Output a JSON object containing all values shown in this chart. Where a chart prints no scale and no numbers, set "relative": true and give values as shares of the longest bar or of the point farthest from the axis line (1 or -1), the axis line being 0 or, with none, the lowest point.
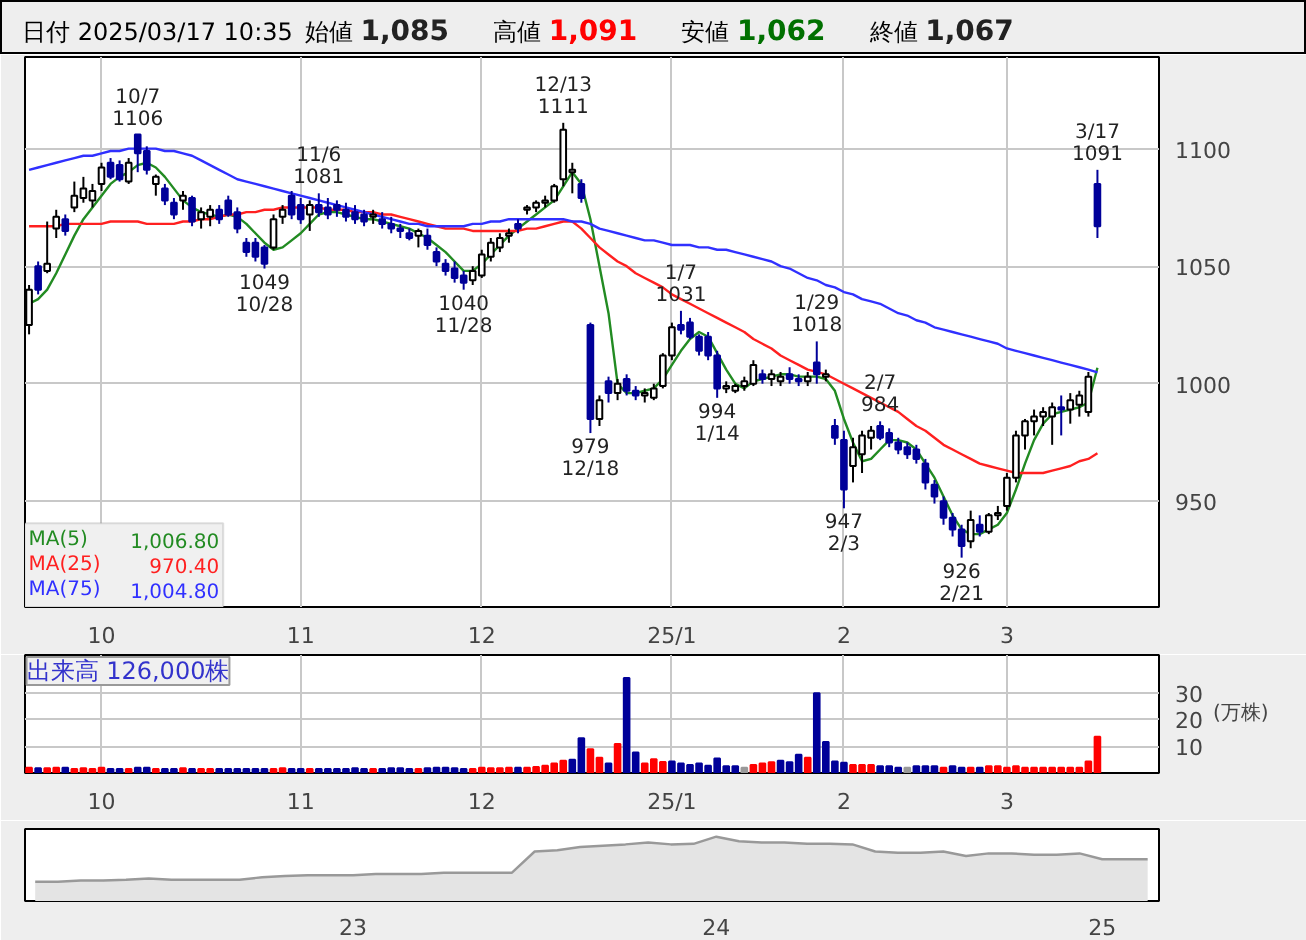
{
  "chart_data": [
    {
      "type": "candlestick",
      "grid": true,
      "annotations": [
        "日付 2025/03/17 10:35",
        "始値 1,085",
        "高値 1,091",
        "安値 1,062",
        "終値 1,067",
        {
          "text": "10/7\n1106",
          "y": 1106
        },
        {
          "text": "1049\n10/28",
          "y": 1049
        },
        {
          "text": "11/6\n1081",
          "y": 1081
        },
        {
          "text": "1040\n11/28",
          "y": 1040
        },
        {
          "text": "12/13\n1111",
          "y": 1111
        },
        {
          "text": "979\n12/18",
          "y": 979
        },
        {
          "text": "1/7\n1031",
          "y": 1031
        },
        {
          "text": "994\n1/14",
          "y": 994
        },
        {
          "text": "1/29\n1018",
          "y": 1018
        },
        {
          "text": "947\n2/3",
          "y": 947
        },
        {
          "text": "2/7\n984",
          "y": 984
        },
        {
          "text": "926\n2/21",
          "y": 926
        },
        {
          "text": "3/17\n1091",
          "y": 1091
        }
      ],
      "categories": [
        null,
        null,
        null,
        null,
        null,
        null,
        null,
        null,
        "10",
        null,
        null,
        null,
        null,
        null,
        null,
        null,
        null,
        null,
        null,
        null,
        null,
        null,
        null,
        null,
        null,
        null,
        null,
        null,
        null,
        null,
        "11",
        null,
        null,
        null,
        null,
        null,
        null,
        null,
        null,
        null,
        null,
        null,
        null,
        null,
        null,
        null,
        null,
        null,
        null,
        null,
        "12",
        null,
        null,
        null,
        null,
        null,
        null,
        null,
        null,
        null,
        null,
        null,
        null,
        null,
        null,
        null,
        null,
        null,
        null,
        null,
        null,
        "25/1",
        null,
        null,
        null,
        null,
        null,
        null,
        null,
        null,
        null,
        null,
        null,
        null,
        null,
        null,
        null,
        null,
        null,
        null,
        "2",
        null,
        null,
        null,
        null,
        null,
        null,
        null,
        null,
        null,
        null,
        null,
        null,
        null,
        null,
        null,
        null,
        null,
        "3",
        null,
        null,
        null,
        null,
        null,
        null,
        null,
        null,
        null,
        null
      ],
      "ylim": [
        905,
        1139
      ],
      "yticks": [
        950,
        1000,
        1050,
        1100
      ],
      "ohlc": [
        [
          1025,
          1042,
          1021,
          1040
        ],
        [
          1050,
          1052,
          1038,
          1040
        ],
        [
          1048,
          1069,
          1047,
          1051
        ],
        [
          1066,
          1074,
          1062,
          1071
        ],
        [
          1070,
          1072,
          1063,
          1065
        ],
        [
          1075,
          1086,
          1073,
          1080
        ],
        [
          1079,
          1088,
          1077,
          1083
        ],
        [
          1078,
          1085,
          1075,
          1082
        ],
        [
          1085,
          1094,
          1082,
          1092
        ],
        [
          1094,
          1096,
          1087,
          1088
        ],
        [
          1093,
          1095,
          1086,
          1087
        ],
        [
          1086,
          1096,
          1085,
          1094
        ],
        [
          1106,
          1106,
          1090,
          1098
        ],
        [
          1099,
          1101,
          1089,
          1091
        ],
        [
          1085,
          1089,
          1080,
          1088
        ],
        [
          1083,
          1085,
          1076,
          1078
        ],
        [
          1077,
          1079,
          1070,
          1072
        ],
        [
          1078,
          1082,
          1074,
          1080
        ],
        [
          1079,
          1080,
          1067,
          1069
        ],
        [
          1070,
          1075,
          1066,
          1073
        ],
        [
          1071,
          1076,
          1067,
          1074
        ],
        [
          1074,
          1076,
          1068,
          1070
        ],
        [
          1078,
          1080,
          1071,
          1072
        ],
        [
          1073,
          1075,
          1064,
          1066
        ],
        [
          1060,
          1062,
          1054,
          1056
        ],
        [
          1060,
          1062,
          1052,
          1054
        ],
        [
          1058,
          1059,
          1049,
          1051
        ],
        [
          1058,
          1072,
          1057,
          1070
        ],
        [
          1071,
          1076,
          1068,
          1074
        ],
        [
          1080,
          1082,
          1070,
          1072
        ],
        [
          1076,
          1079,
          1068,
          1070
        ],
        [
          1072,
          1078,
          1065,
          1076
        ],
        [
          1076,
          1081,
          1071,
          1073
        ],
        [
          1075,
          1079,
          1070,
          1072
        ],
        [
          1076,
          1078,
          1071,
          1074
        ],
        [
          1074,
          1077,
          1069,
          1071
        ],
        [
          1073,
          1076,
          1068,
          1070
        ],
        [
          1072,
          1074,
          1067,
          1069
        ],
        [
          1071,
          1074,
          1068,
          1072
        ],
        [
          1070,
          1073,
          1066,
          1068
        ],
        [
          1068,
          1071,
          1064,
          1066
        ],
        [
          1066,
          1068,
          1062,
          1065
        ],
        [
          1064,
          1066,
          1061,
          1062
        ],
        [
          1063,
          1066,
          1058,
          1065
        ],
        [
          1063,
          1066,
          1057,
          1059
        ],
        [
          1056,
          1058,
          1050,
          1052
        ],
        [
          1051,
          1053,
          1046,
          1048
        ],
        [
          1049,
          1052,
          1043,
          1045
        ],
        [
          1046,
          1048,
          1040,
          1043
        ],
        [
          1044,
          1050,
          1042,
          1048
        ],
        [
          1046,
          1057,
          1045,
          1055
        ],
        [
          1054,
          1062,
          1052,
          1060
        ],
        [
          1058,
          1064,
          1056,
          1062
        ],
        [
          1063,
          1066,
          1060,
          1064
        ],
        [
          1068,
          1070,
          1064,
          1066
        ],
        [
          1074,
          1076,
          1072,
          1075
        ],
        [
          1075,
          1078,
          1073,
          1077
        ],
        [
          1077,
          1080,
          1075,
          1078
        ],
        [
          1078,
          1085,
          1077,
          1084
        ],
        [
          1087,
          1111,
          1084,
          1108
        ],
        [
          1090,
          1094,
          1081,
          1091
        ],
        [
          1085,
          1087,
          1077,
          1079
        ],
        [
          1025,
          1026,
          979,
          985
        ],
        [
          985,
          995,
          982,
          993
        ],
        [
          1001,
          1003,
          992,
          996
        ],
        [
          996,
          1002,
          993,
          1000
        ],
        [
          1002,
          1004,
          995,
          997
        ],
        [
          997,
          999,
          993,
          995
        ],
        [
          995,
          998,
          992,
          996
        ],
        [
          994,
          1000,
          993,
          998
        ],
        [
          999,
          1013,
          998,
          1012
        ],
        [
          1012,
          1026,
          1010,
          1024
        ],
        [
          1025,
          1031,
          1021,
          1023
        ],
        [
          1026,
          1028,
          1019,
          1020
        ],
        [
          1020,
          1021,
          1012,
          1014
        ],
        [
          1020,
          1022,
          1010,
          1012
        ],
        [
          1012,
          1014,
          994,
          998
        ],
        [
          998,
          1001,
          996,
          999
        ],
        [
          997,
          1000,
          996,
          999
        ],
        [
          999,
          1003,
          997,
          1001
        ],
        [
          1000,
          1010,
          999,
          1008
        ],
        [
          1004,
          1006,
          1000,
          1002
        ],
        [
          1002,
          1006,
          999,
          1004
        ],
        [
          1001,
          1005,
          999,
          1003
        ],
        [
          1004,
          1007,
          1000,
          1002
        ],
        [
          1002,
          1004,
          999,
          1001
        ],
        [
          1001,
          1005,
          999,
          1003
        ],
        [
          1009,
          1018,
          1000,
          1004
        ],
        [
          1003,
          1006,
          1001,
          1004
        ],
        [
          982,
          985,
          974,
          977
        ],
        [
          976,
          980,
          947,
          955
        ],
        [
          965,
          977,
          958,
          973
        ],
        [
          970,
          980,
          962,
          978
        ],
        [
          977,
          982,
          972,
          980
        ],
        [
          982,
          984,
          976,
          977
        ],
        [
          979,
          981,
          973,
          975
        ],
        [
          975,
          977,
          970,
          972
        ],
        [
          973,
          975,
          968,
          970
        ],
        [
          972,
          974,
          966,
          968
        ],
        [
          966,
          968,
          955,
          958
        ],
        [
          957,
          959,
          949,
          952
        ],
        [
          950,
          952,
          940,
          943
        ],
        [
          943,
          945,
          935,
          938
        ],
        [
          938,
          940,
          926,
          931
        ],
        [
          933,
          946,
          930,
          942
        ],
        [
          940,
          944,
          935,
          937
        ],
        [
          937,
          945,
          936,
          944
        ],
        [
          944,
          948,
          942,
          945
        ],
        [
          948,
          962,
          946,
          960
        ],
        [
          960,
          980,
          958,
          978
        ],
        [
          978,
          985,
          972,
          984
        ],
        [
          984,
          989,
          978,
          986
        ],
        [
          986,
          990,
          982,
          988
        ],
        [
          986,
          992,
          974,
          990
        ],
        [
          990,
          995,
          978,
          989
        ],
        [
          989,
          996,
          983,
          993
        ],
        [
          991,
          997,
          986,
          995
        ],
        [
          988,
          1005,
          986,
          1003
        ],
        [
          1085,
          1091,
          1062,
          1067
        ]
      ],
      "series": [
        {
          "type": "line",
          "name": "MA(5) 1,006.80",
          "color": "#228b22",
          "values": [
            1034,
            1036,
            1040,
            1047,
            1055,
            1063,
            1070,
            1075,
            1080,
            1085,
            1088,
            1090,
            1093,
            1094,
            1092,
            1088,
            1083,
            1078,
            1075,
            1073,
            1072,
            1071,
            1072,
            1071,
            1068,
            1064,
            1060,
            1057,
            1058,
            1061,
            1064,
            1068,
            1072,
            1073,
            1073,
            1072,
            1071,
            1070,
            1070,
            1069,
            1068,
            1067,
            1066,
            1064,
            1062,
            1059,
            1056,
            1052,
            1048,
            1048,
            1051,
            1055,
            1059,
            1063,
            1066,
            1069,
            1072,
            1075,
            1078,
            1084,
            1090,
            1085,
            1070,
            1050,
            1030,
            1000,
            996,
            996,
            997,
            998,
            1002,
            1008,
            1014,
            1019,
            1022,
            1020,
            1013,
            1006,
            1000,
            998,
            1001,
            1002,
            1003,
            1004,
            1004,
            1003,
            1003,
            1003,
            1002,
            997,
            985,
            975,
            967,
            968,
            972,
            976,
            976,
            975,
            972,
            966,
            960,
            952,
            944,
            938,
            936,
            936,
            938,
            940,
            945,
            955,
            966,
            976,
            983,
            987,
            988,
            989,
            990,
            992,
            1006.8
          ]
        },
        {
          "type": "line",
          "name": "MA(25) 970.40",
          "color": "#ff2020",
          "values": [
            1067,
            1067,
            1067,
            1067,
            1068,
            1068,
            1068,
            1068,
            1068,
            1069,
            1069,
            1069,
            1069,
            1068,
            1068,
            1068,
            1068,
            1069,
            1069,
            1070,
            1070,
            1071,
            1072,
            1072,
            1073,
            1073,
            1074,
            1074,
            1075,
            1075,
            1075,
            1075,
            1075,
            1074,
            1074,
            1074,
            1073,
            1073,
            1073,
            1072,
            1072,
            1071,
            1070,
            1069,
            1068,
            1067,
            1066,
            1066,
            1066,
            1065,
            1065,
            1065,
            1065,
            1065,
            1065,
            1066,
            1066,
            1067,
            1068,
            1069,
            1069,
            1066,
            1062,
            1058,
            1055,
            1052,
            1050,
            1047,
            1045,
            1043,
            1041,
            1038,
            1036,
            1034,
            1032,
            1030,
            1028,
            1026,
            1024,
            1022,
            1019,
            1017,
            1015,
            1012,
            1010,
            1008,
            1006,
            1005,
            1004,
            1002,
            1000,
            998,
            996,
            994,
            992,
            990,
            988,
            985,
            982,
            980,
            977,
            974,
            972,
            970,
            968,
            966,
            965,
            964,
            963,
            962,
            962,
            962,
            962,
            963,
            964,
            965,
            967,
            968,
            970.4
          ]
        },
        {
          "type": "line",
          "name": "MA(75) 1,004.80",
          "color": "#3030ff",
          "values": [
            1091,
            1092,
            1093,
            1094,
            1095,
            1096,
            1097,
            1097,
            1098,
            1099,
            1099,
            1100,
            1100,
            1100,
            1100,
            1099,
            1099,
            1098,
            1097,
            1095,
            1093,
            1091,
            1089,
            1087,
            1086,
            1085,
            1084,
            1083,
            1082,
            1081,
            1080,
            1079,
            1078,
            1077,
            1076,
            1075,
            1074,
            1073,
            1072,
            1071,
            1070,
            1069,
            1068,
            1068,
            1067,
            1067,
            1067,
            1067,
            1067,
            1068,
            1068,
            1069,
            1069,
            1070,
            1070,
            1070,
            1070,
            1070,
            1070,
            1070,
            1069,
            1069,
            1068,
            1066,
            1065,
            1064,
            1063,
            1062,
            1061,
            1061,
            1060,
            1059,
            1059,
            1059,
            1058,
            1058,
            1057,
            1057,
            1056,
            1055,
            1054,
            1053,
            1052,
            1050,
            1049,
            1047,
            1045,
            1044,
            1042,
            1041,
            1039,
            1038,
            1036,
            1035,
            1034,
            1032,
            1030,
            1029,
            1027,
            1026,
            1024,
            1023,
            1022,
            1021,
            1020,
            1019,
            1018,
            1017,
            1015,
            1014,
            1013,
            1012,
            1011,
            1010,
            1009,
            1008,
            1007,
            1006,
            1004.8
          ]
        }
      ]
    },
    {
      "type": "bar",
      "title": "出来高 126,000株",
      "ylabel": "(万株)",
      "grid": true,
      "categories": [
        null,
        null,
        null,
        null,
        null,
        null,
        null,
        null,
        "10",
        null,
        null,
        null,
        null,
        null,
        null,
        null,
        null,
        null,
        null,
        null,
        null,
        null,
        null,
        null,
        null,
        null,
        null,
        null,
        null,
        null,
        "11",
        null,
        null,
        null,
        null,
        null,
        null,
        null,
        null,
        null,
        null,
        null,
        null,
        null,
        null,
        null,
        null,
        null,
        null,
        null,
        "12",
        null,
        null,
        null,
        null,
        null,
        null,
        null,
        null,
        null,
        null,
        null,
        null,
        null,
        null,
        null,
        null,
        null,
        null,
        null,
        null,
        "25/1",
        null,
        null,
        null,
        null,
        null,
        null,
        null,
        null,
        null,
        null,
        null,
        null,
        null,
        null,
        null,
        null,
        null,
        null,
        "2",
        null,
        null,
        null,
        null,
        null,
        null,
        null,
        null,
        null,
        null,
        null,
        null,
        null,
        null,
        null,
        null,
        null,
        "3",
        null,
        null,
        null,
        null,
        null,
        null,
        null,
        null,
        null,
        null
      ],
      "ylim": [
        0,
        44
      ],
      "yticks": [
        10,
        20,
        30
      ],
      "values": [
        2,
        1.8,
        1.8,
        2,
        2,
        1.5,
        1.8,
        1.5,
        2,
        1.5,
        1.5,
        1.5,
        2,
        2,
        1.5,
        1.5,
        1.5,
        1.8,
        1.5,
        1.5,
        1.5,
        1.5,
        1.5,
        1.5,
        1.5,
        1.5,
        1.5,
        1.5,
        1.8,
        1.5,
        1.5,
        1.5,
        1.5,
        1.5,
        1.5,
        1.5,
        1.8,
        1.5,
        1.5,
        1.5,
        1.8,
        1.8,
        1.5,
        1.5,
        1.8,
        2,
        2,
        1.8,
        1.5,
        1.5,
        2,
        1.8,
        1.8,
        2,
        2,
        2,
        2.2,
        2.7,
        3.5,
        4.6,
        4.9,
        13,
        8.9,
        5.7,
        3.5,
        10.8,
        35.4,
        7.6,
        3.5,
        5.1,
        4.1,
        4.3,
        3.5,
        3,
        3.5,
        2.7,
        5.4,
        2.5,
        2.5,
        2,
        3,
        3.5,
        4,
        4.6,
        4,
        6.8,
        5.7,
        29.7,
        11.6,
        4.3,
        3.8,
        3,
        3,
        3,
        2.5,
        2.5,
        2,
        2,
        2.5,
        2.5,
        2.5,
        2,
        2.5,
        2,
        2,
        2,
        2.5,
        2.5,
        2,
        2.5,
        2,
        2,
        2,
        2,
        2,
        2,
        2,
        4.3,
        13.5
      ],
      "colors": [
        "#ff0000",
        "#000099",
        "#ff0000",
        "#ff0000",
        "#000099",
        "#ff0000",
        "#ff0000",
        "#ff0000",
        "#ff0000",
        "#000099",
        "#000099",
        "#ff0000",
        "#000099",
        "#000099",
        "#ff0000",
        "#000099",
        "#000099",
        "#ff0000",
        "#000099",
        "#ff0000",
        "#ff0000",
        "#000099",
        "#000099",
        "#000099",
        "#000099",
        "#000099",
        "#000099",
        "#ff0000",
        "#ff0000",
        "#000099",
        "#000099",
        "#ff0000",
        "#000099",
        "#000099",
        "#000099",
        "#000099",
        "#000099",
        "#000099",
        "#ff0000",
        "#000099",
        "#000099",
        "#000099",
        "#000099",
        "#ff0000",
        "#000099",
        "#000099",
        "#000099",
        "#000099",
        "#000099",
        "#ff0000",
        "#ff0000",
        "#ff0000",
        "#ff0000",
        "#ff0000",
        "#000099",
        "#ff0000",
        "#ff0000",
        "#ff0000",
        "#ff0000",
        "#ff0000",
        "#000099",
        "#000099",
        "#ff0000",
        "#ff0000",
        "#000099",
        "#ff0000",
        "#000099",
        "#000099",
        "#ff0000",
        "#ff0000",
        "#ff0000",
        "#000099",
        "#000099",
        "#000099",
        "#000099",
        "#000099",
        "#000099",
        "#000099",
        "#000099",
        "#999999",
        "#ff0000",
        "#ff0000",
        "#ff0000",
        "#000099",
        "#000099",
        "#000099",
        "#ff0000",
        "#000099",
        "#000099",
        "#000099",
        "#000099",
        "#ff0000",
        "#ff0000",
        "#ff0000",
        "#000099",
        "#000099",
        "#000099",
        "#999999",
        "#000099",
        "#000099",
        "#000099",
        "#ff0000",
        "#000099",
        "#000099",
        "#ff0000",
        "#000099",
        "#ff0000",
        "#ff0000",
        "#ff0000",
        "#ff0000",
        "#ff0000",
        "#ff0000",
        "#ff0000",
        "#ff0000",
        "#ff0000",
        "#ff0000",
        "#ff0000",
        "#ff0000",
        "#ff0000"
      ]
    },
    {
      "type": "area",
      "relative": true,
      "tick_labels": "x",
      "color": "#999999",
      "categories": [
        null,
        null,
        null,
        null,
        null,
        null,
        null,
        null,
        null,
        null,
        null,
        null,
        null,
        null,
        "23",
        null,
        null,
        null,
        null,
        null,
        null,
        null,
        null,
        null,
        null,
        null,
        null,
        null,
        null,
        null,
        "24",
        null,
        null,
        null,
        null,
        null,
        null,
        null,
        null,
        null,
        null,
        null,
        null,
        null,
        null,
        null,
        null,
        "25",
        null,
        null
      ],
      "values": [
        0.3,
        0.3,
        0.32,
        0.32,
        0.33,
        0.35,
        0.33,
        0.33,
        0.33,
        0.33,
        0.37,
        0.39,
        0.4,
        0.4,
        0.4,
        0.42,
        0.42,
        0.42,
        0.44,
        0.44,
        0.44,
        0.44,
        0.77,
        0.79,
        0.84,
        0.86,
        0.88,
        0.91,
        0.88,
        0.89,
        1,
        0.93,
        0.91,
        0.91,
        0.89,
        0.89,
        0.88,
        0.77,
        0.75,
        0.75,
        0.77,
        0.7,
        0.74,
        0.74,
        0.72,
        0.72,
        0.74,
        0.65,
        0.65,
        0.65
      ]
    }
  ]
}
